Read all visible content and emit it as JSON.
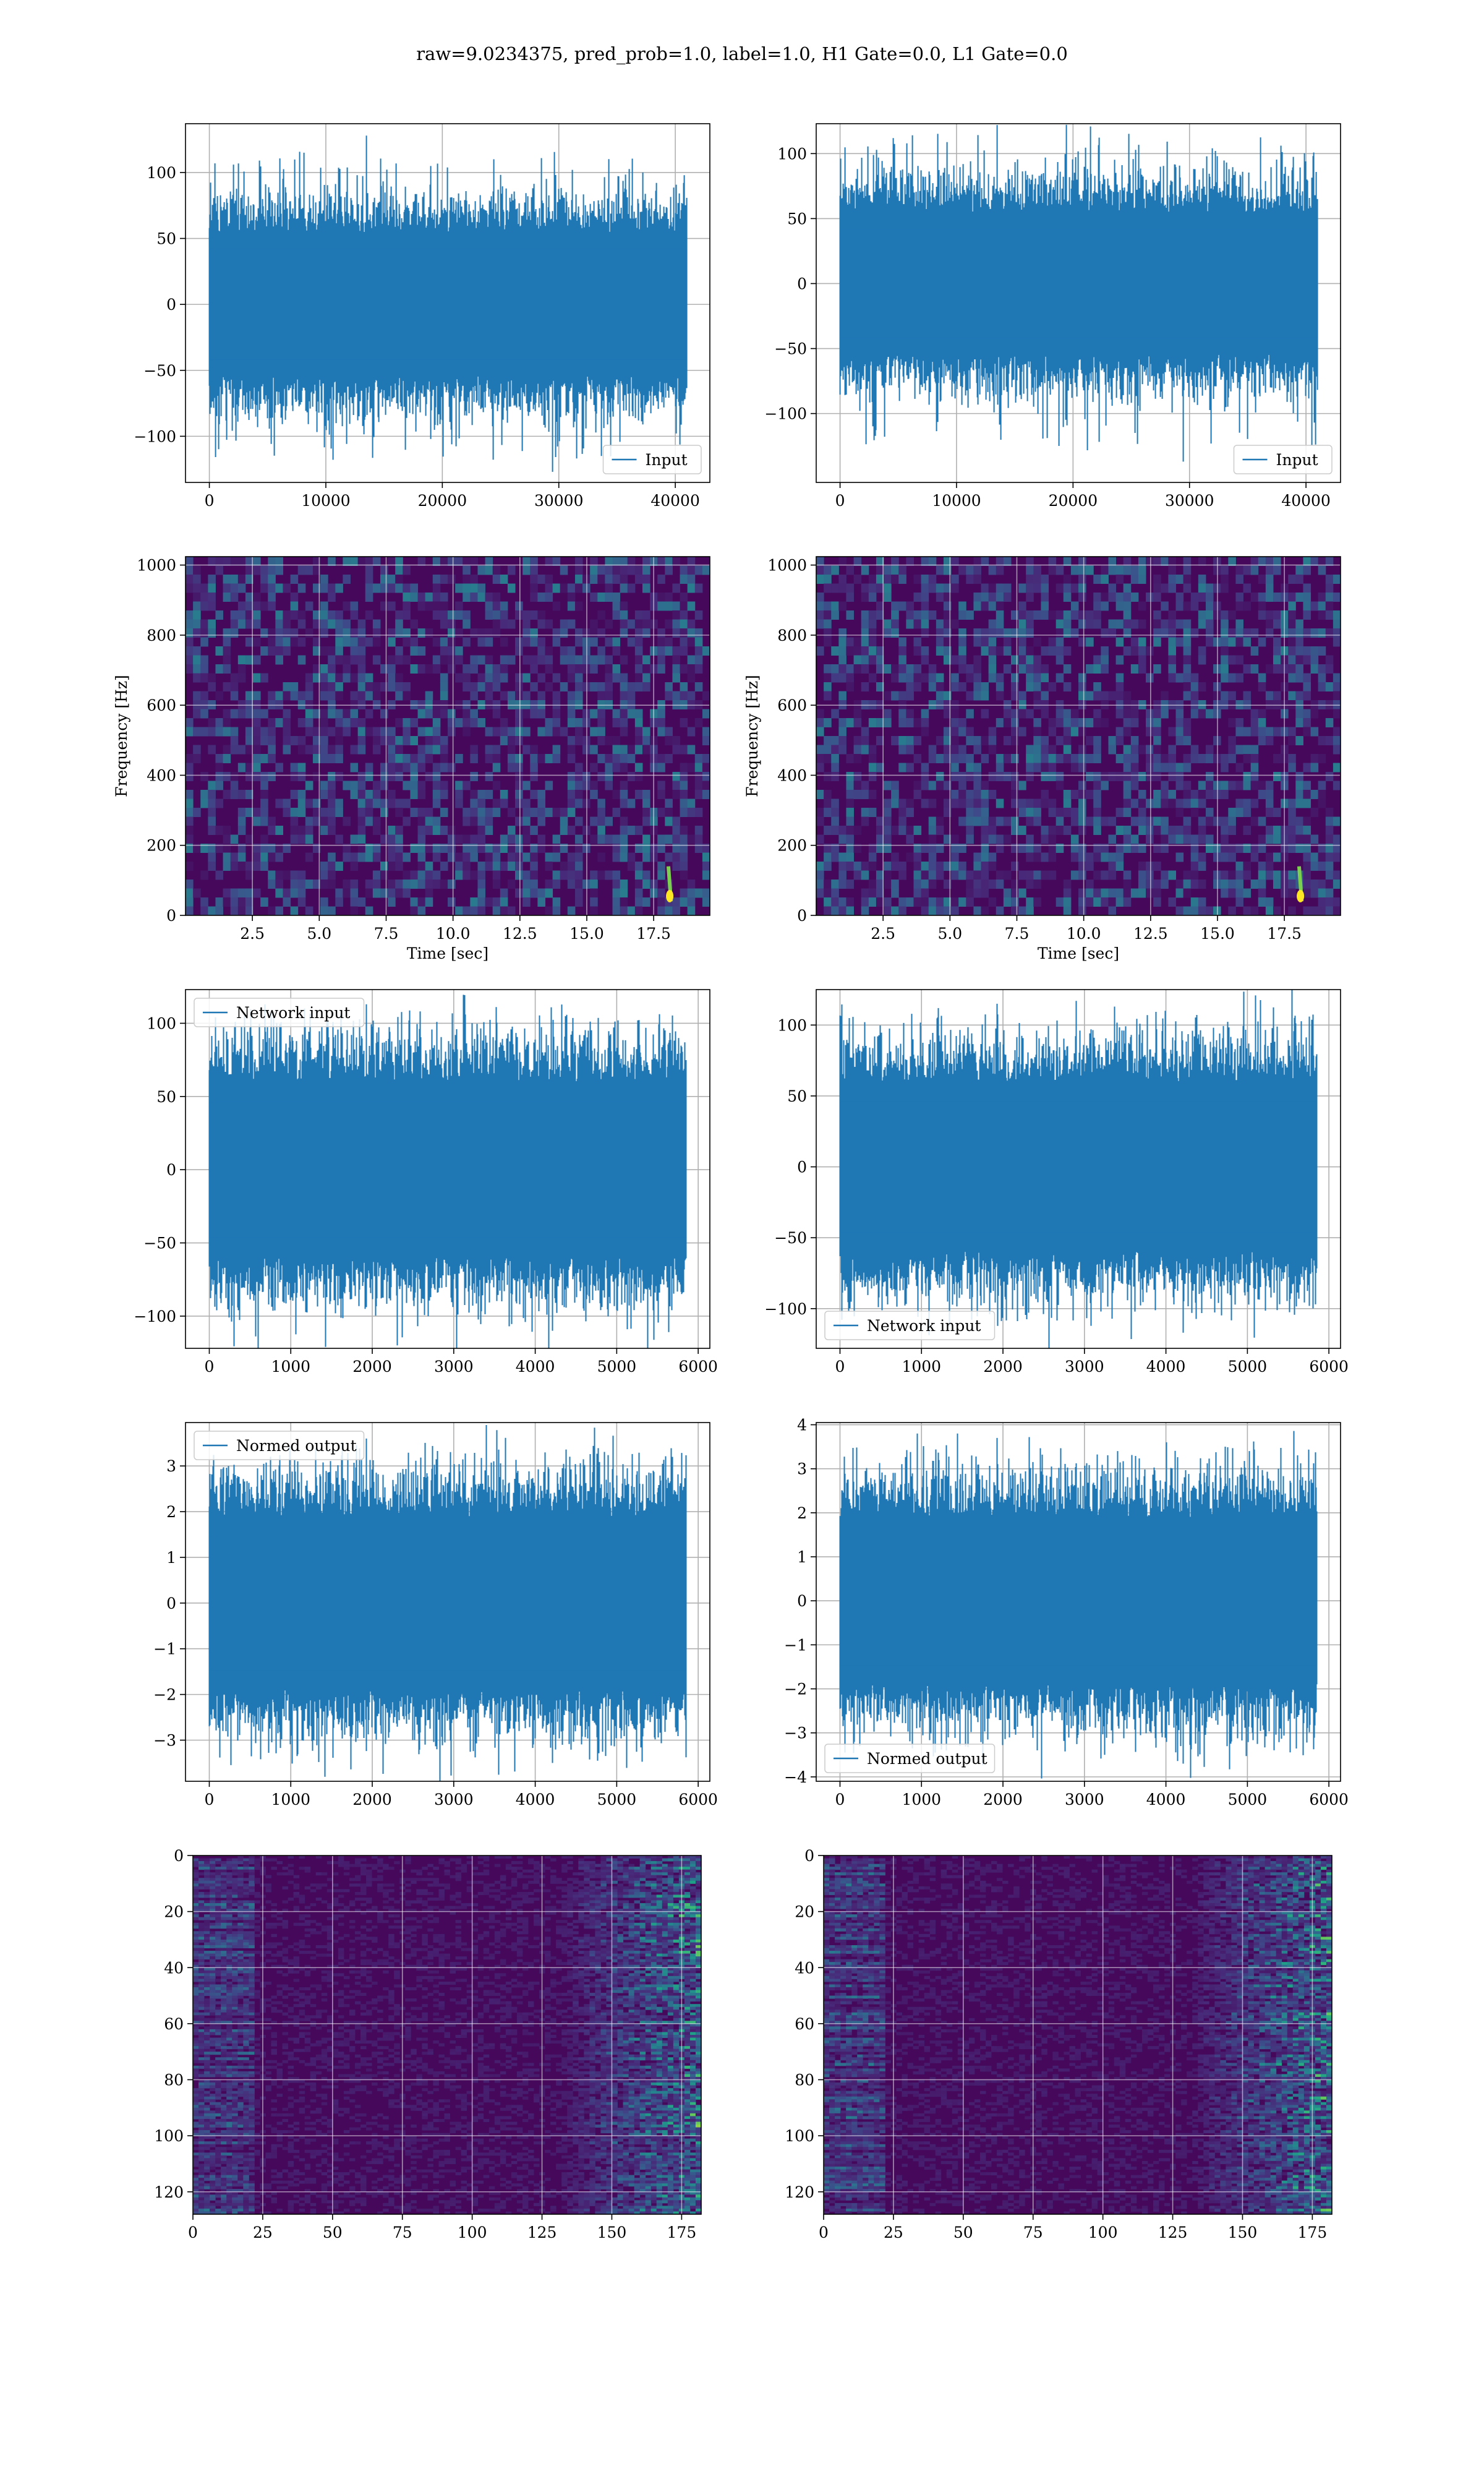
{
  "figure": {
    "title": "raw=9.0234375, pred_prob=1.0, label=1.0, H1 Gate=0.0, L1 Gate=0.0",
    "series_color": "#1f77b4"
  },
  "chart_data": [
    {
      "id": "input-h1",
      "type": "line",
      "title": "",
      "xlabel": "",
      "ylabel": "",
      "xlim": [
        -2048,
        42966
      ],
      "ylim": [
        -135,
        137
      ],
      "xticks": [
        0,
        10000,
        20000,
        30000,
        40000
      ],
      "yticks": [
        -100,
        -50,
        0,
        50,
        100
      ],
      "tick_labels": {
        "x": [
          "0",
          "10000",
          "20000",
          "30000",
          "40000"
        ],
        "y": [
          "−100",
          "−50",
          "0",
          "50",
          "100"
        ]
      },
      "series": [
        {
          "name": "Input",
          "x_range": [
            0,
            40959
          ],
          "approx_amplitude": 20,
          "peak_max": 128,
          "peak_min": -127
        }
      ],
      "legend": {
        "position": "lower-right",
        "label": "Input"
      },
      "grid": true
    },
    {
      "id": "input-l1",
      "type": "line",
      "title": "",
      "xlabel": "",
      "ylabel": "",
      "xlim": [
        -2048,
        42966
      ],
      "ylim": [
        -153,
        123
      ],
      "xticks": [
        0,
        10000,
        20000,
        30000,
        40000
      ],
      "yticks": [
        -100,
        -50,
        0,
        50,
        100
      ],
      "tick_labels": {
        "x": [
          "0",
          "10000",
          "20000",
          "30000",
          "40000"
        ],
        "y": [
          "−100",
          "−50",
          "0",
          "50",
          "100"
        ]
      },
      "series": [
        {
          "name": "Input",
          "x_range": [
            0,
            40959
          ],
          "approx_amplitude": 20,
          "peak_max": 122,
          "peak_min": -137
        }
      ],
      "legend": {
        "position": "lower-right",
        "label": "Input"
      },
      "grid": true
    },
    {
      "id": "spectrogram-h1",
      "type": "heatmap",
      "colormap": "viridis",
      "title": "",
      "xlabel": "Time [sec]",
      "ylabel": "Frequency [Hz]",
      "xlim": [
        0,
        19.6
      ],
      "ylim": [
        0,
        1024
      ],
      "xticks": [
        2.5,
        5.0,
        7.5,
        10.0,
        12.5,
        15.0,
        17.5
      ],
      "yticks": [
        0,
        200,
        400,
        600,
        800,
        1000
      ],
      "tick_labels": {
        "x": [
          "2.5",
          "5.0",
          "7.5",
          "10.0",
          "12.5",
          "15.0",
          "17.5"
        ],
        "y": [
          "0",
          "200",
          "400",
          "600",
          "800",
          "1000"
        ]
      },
      "chirp": {
        "time": 18.1,
        "freq_range": [
          40,
          140
        ]
      },
      "grid": true
    },
    {
      "id": "spectrogram-l1",
      "type": "heatmap",
      "colormap": "viridis",
      "title": "",
      "xlabel": "Time [sec]",
      "ylabel": "Frequency [Hz]",
      "xlim": [
        0,
        19.6
      ],
      "ylim": [
        0,
        1024
      ],
      "xticks": [
        2.5,
        5.0,
        7.5,
        10.0,
        12.5,
        15.0,
        17.5
      ],
      "yticks": [
        0,
        200,
        400,
        600,
        800,
        1000
      ],
      "tick_labels": {
        "x": [
          "2.5",
          "5.0",
          "7.5",
          "10.0",
          "12.5",
          "15.0",
          "17.5"
        ],
        "y": [
          "0",
          "200",
          "400",
          "600",
          "800",
          "1000"
        ]
      },
      "chirp": {
        "time": 18.1,
        "freq_range": [
          40,
          140
        ]
      },
      "grid": true
    },
    {
      "id": "network-input-h1",
      "type": "line",
      "title": "",
      "xlabel": "",
      "ylabel": "",
      "xlim": [
        -292,
        6143
      ],
      "ylim": [
        -122,
        123
      ],
      "xticks": [
        0,
        1000,
        2000,
        3000,
        4000,
        5000,
        6000
      ],
      "yticks": [
        -100,
        -50,
        0,
        50,
        100
      ],
      "tick_labels": {
        "x": [
          "0",
          "1000",
          "2000",
          "3000",
          "4000",
          "5000",
          "6000"
        ],
        "y": [
          "−100",
          "−50",
          "0",
          "50",
          "100"
        ]
      },
      "series": [
        {
          "name": "Network input",
          "x_range": [
            0,
            5850
          ],
          "approx_amplitude": 22,
          "peak_max": 113,
          "peak_min": -110
        }
      ],
      "legend": {
        "position": "upper-left",
        "label": "Network input"
      },
      "grid": true
    },
    {
      "id": "network-input-l1",
      "type": "line",
      "title": "",
      "xlabel": "",
      "ylabel": "",
      "xlim": [
        -292,
        6143
      ],
      "ylim": [
        -128,
        125
      ],
      "xticks": [
        0,
        1000,
        2000,
        3000,
        4000,
        5000,
        6000
      ],
      "yticks": [
        -100,
        -50,
        0,
        50,
        100
      ],
      "tick_labels": {
        "x": [
          "0",
          "1000",
          "2000",
          "3000",
          "4000",
          "5000",
          "6000"
        ],
        "y": [
          "−100",
          "−50",
          "0",
          "50",
          "100"
        ]
      },
      "series": [
        {
          "name": "Network input",
          "x_range": [
            0,
            5850
          ],
          "approx_amplitude": 22,
          "peak_max": 115,
          "peak_min": -117
        }
      ],
      "legend": {
        "position": "lower-left",
        "label": "Network input"
      },
      "grid": true
    },
    {
      "id": "normed-output-h1",
      "type": "line",
      "title": "",
      "xlabel": "",
      "ylabel": "",
      "xlim": [
        -292,
        6143
      ],
      "ylim": [
        -3.9,
        3.95
      ],
      "xticks": [
        0,
        1000,
        2000,
        3000,
        4000,
        5000,
        6000
      ],
      "yticks": [
        -3,
        -2,
        -1,
        0,
        1,
        2,
        3
      ],
      "tick_labels": {
        "x": [
          "0",
          "1000",
          "2000",
          "3000",
          "4000",
          "5000",
          "6000"
        ],
        "y": [
          "−3",
          "−2",
          "−1",
          "0",
          "1",
          "2",
          "3"
        ]
      },
      "series": [
        {
          "name": "Normed output",
          "x_range": [
            0,
            5850
          ],
          "approx_amplitude": 0.7,
          "peak_max": 3.6,
          "peak_min": -3.5
        }
      ],
      "legend": {
        "position": "upper-left",
        "label": "Normed output"
      },
      "grid": true
    },
    {
      "id": "normed-output-l1",
      "type": "line",
      "title": "",
      "xlabel": "",
      "ylabel": "",
      "xlim": [
        -292,
        6143
      ],
      "ylim": [
        -4.1,
        4.05
      ],
      "xticks": [
        0,
        1000,
        2000,
        3000,
        4000,
        5000,
        6000
      ],
      "yticks": [
        -4,
        -3,
        -2,
        -1,
        0,
        1,
        2,
        3,
        4
      ],
      "tick_labels": {
        "x": [
          "0",
          "1000",
          "2000",
          "3000",
          "4000",
          "5000",
          "6000"
        ],
        "y": [
          "−4",
          "−3",
          "−2",
          "−1",
          "0",
          "1",
          "2",
          "3",
          "4"
        ]
      },
      "series": [
        {
          "name": "Normed output",
          "x_range": [
            0,
            5850
          ],
          "approx_amplitude": 0.7,
          "peak_max": 3.7,
          "peak_min": -3.7
        }
      ],
      "legend": {
        "position": "lower-left",
        "label": "Normed output"
      },
      "grid": true
    },
    {
      "id": "feature-map-h1",
      "type": "heatmap",
      "colormap": "viridis",
      "title": "",
      "xlabel": "",
      "ylabel": "",
      "xlim": [
        0,
        182
      ],
      "ylim": [
        128,
        0
      ],
      "xticks": [
        0,
        25,
        50,
        75,
        100,
        125,
        150,
        175
      ],
      "yticks": [
        0,
        20,
        40,
        60,
        80,
        100,
        120
      ],
      "tick_labels": {
        "x": [
          "0",
          "25",
          "50",
          "75",
          "100",
          "125",
          "150",
          "175"
        ],
        "y": [
          "0",
          "20",
          "40",
          "60",
          "80",
          "100",
          "120"
        ]
      },
      "grid": true
    },
    {
      "id": "feature-map-l1",
      "type": "heatmap",
      "colormap": "viridis",
      "title": "",
      "xlabel": "",
      "ylabel": "",
      "xlim": [
        0,
        182
      ],
      "ylim": [
        128,
        0
      ],
      "xticks": [
        0,
        25,
        50,
        75,
        100,
        125,
        150,
        175
      ],
      "yticks": [
        0,
        20,
        40,
        60,
        80,
        100,
        120
      ],
      "tick_labels": {
        "x": [
          "0",
          "25",
          "50",
          "75",
          "100",
          "125",
          "150",
          "175"
        ],
        "y": [
          "0",
          "20",
          "40",
          "60",
          "80",
          "100",
          "120"
        ]
      },
      "grid": true
    }
  ]
}
